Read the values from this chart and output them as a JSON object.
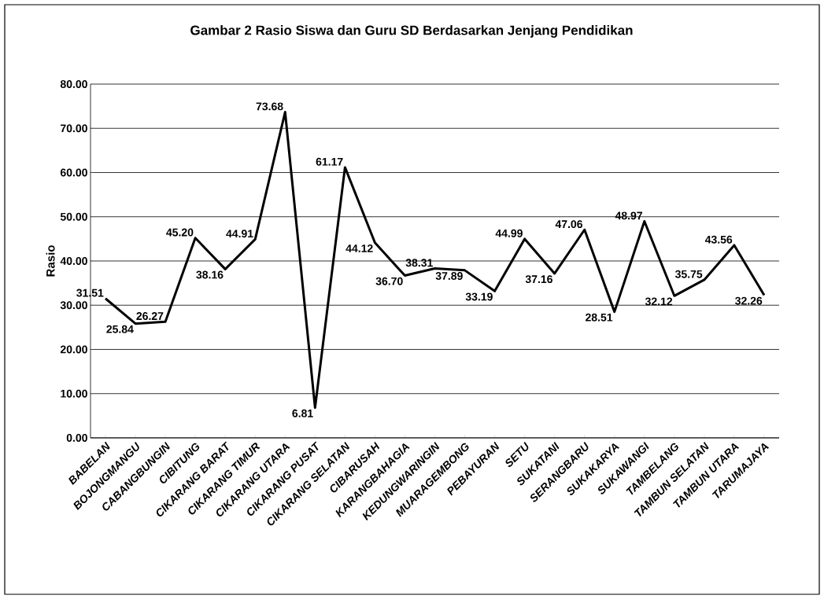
{
  "chart_data": {
    "type": "line",
    "title": "Gambar 2 Rasio Siswa dan Guru SD Berdasarkan Jenjang Pendidikan",
    "ylabel": "Rasio",
    "categories": [
      "BABELAN",
      "BOJONGMANGU",
      "CABANGBUNGIN",
      "CIBITUNG",
      "CIKARANG BARAT",
      "CIKARANG TIMUR",
      "CIKARANG UTARA",
      "CIKARANG PUSAT",
      "CIKARANG SELATAN",
      "CIBARUSAH",
      "KARANGBAHAGIA",
      "KEDUNGWARINGIN",
      "MUARAGEMBONG",
      "PEBAYURAN",
      "SETU",
      "SUKATANI",
      "SERANGBARU",
      "SUKAKARYA",
      "SUKAWANGI",
      "TAMBELANG",
      "TAMBUN SELATAN",
      "TAMBUN UTARA",
      "TARUMAJAYA"
    ],
    "values": [
      31.51,
      25.84,
      26.27,
      45.2,
      38.16,
      44.91,
      73.68,
      6.81,
      61.17,
      44.12,
      36.7,
      38.31,
      37.89,
      33.19,
      44.99,
      37.16,
      47.06,
      28.51,
      48.97,
      32.12,
      35.75,
      43.56,
      32.26
    ],
    "value_labels": [
      "31.51",
      "25.84",
      "26.27",
      "45.20",
      "38.16",
      "44.91",
      "73.68",
      "6.81",
      "61.17",
      "44.12",
      "36.70",
      "38.31",
      "37.89",
      "33.19",
      "44.99",
      "37.16",
      "47.06",
      "28.51",
      "48.97",
      "32.12",
      "35.75",
      "43.56",
      "32.26"
    ],
    "color": "#000000",
    "ylim": [
      0,
      80
    ],
    "yticks": [
      {
        "value": 0,
        "label": "0.00"
      },
      {
        "value": 10,
        "label": "10.00"
      },
      {
        "value": 20,
        "label": "20.00"
      },
      {
        "value": 30,
        "label": "30.00"
      },
      {
        "value": 40,
        "label": "40.00"
      },
      {
        "value": 50,
        "label": "50.00"
      },
      {
        "value": 60,
        "label": "60.00"
      },
      {
        "value": 70,
        "label": "70.00"
      },
      {
        "value": 80,
        "label": "80.00"
      }
    ],
    "grid": "y",
    "legend": false,
    "marker": "none",
    "line_style": "solid"
  }
}
